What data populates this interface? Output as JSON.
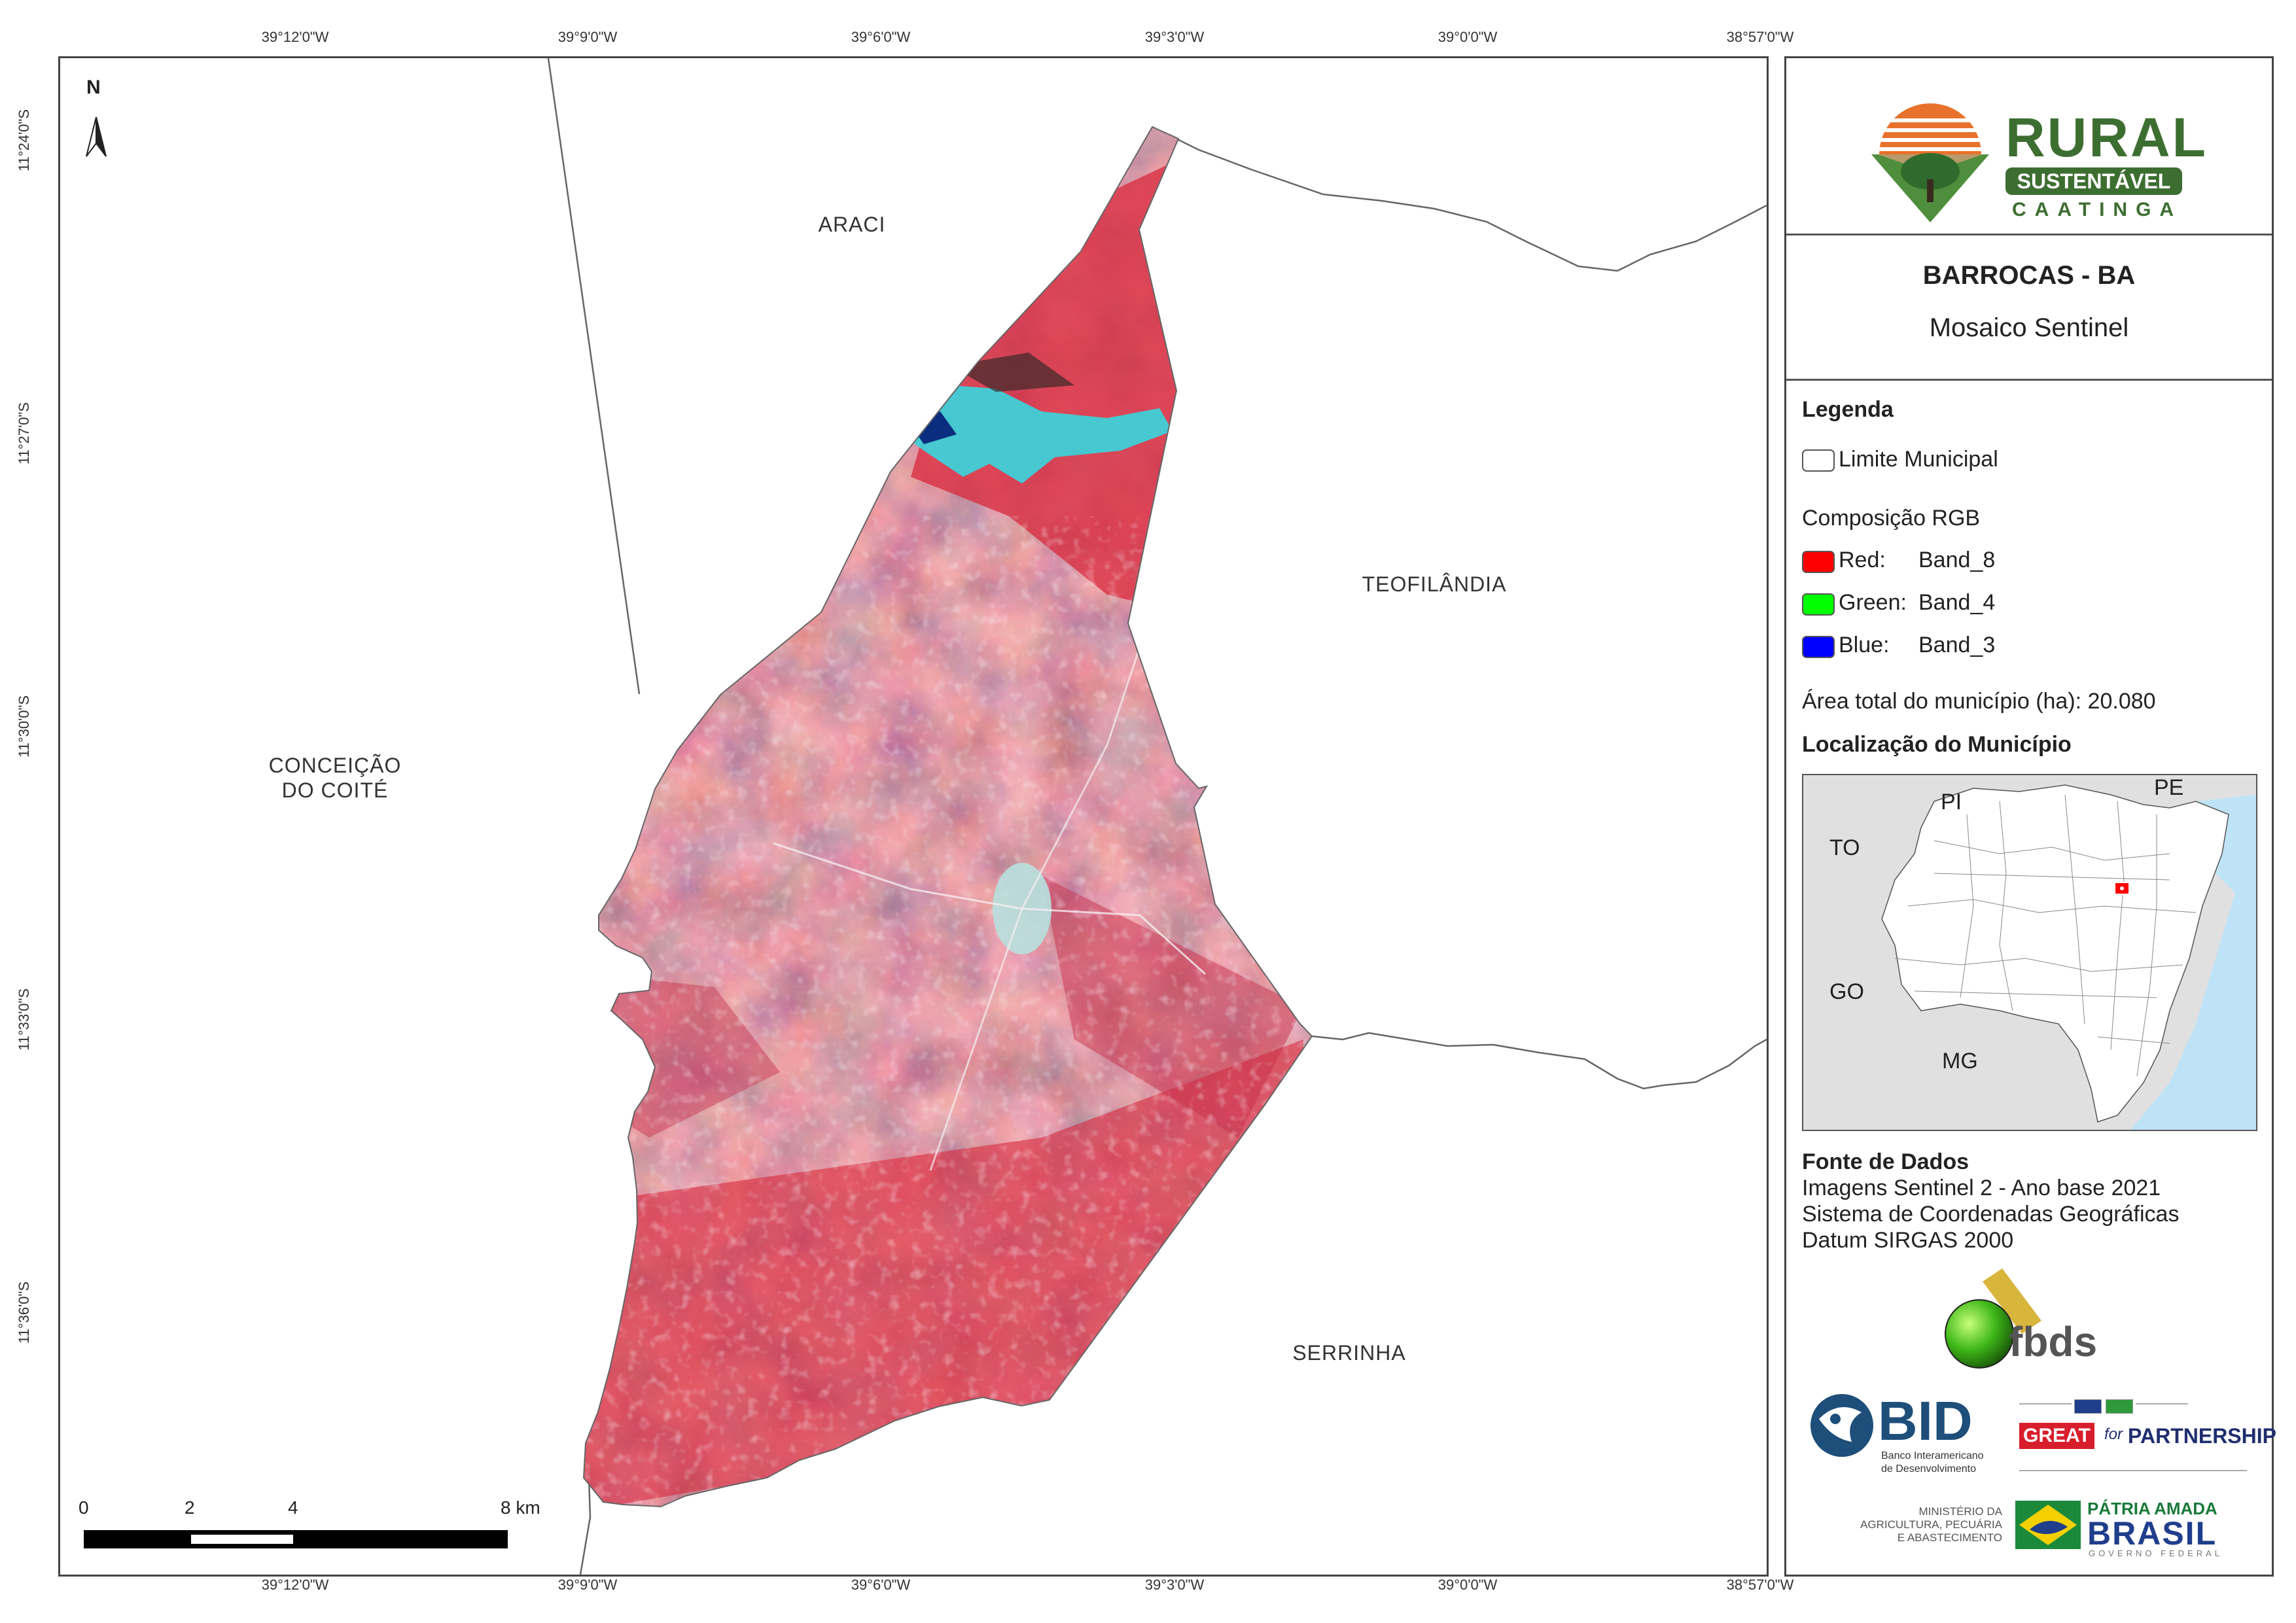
{
  "coordinates": {
    "longitudes": [
      "39°12'0\"W",
      "39°9'0\"W",
      "39°6'0\"W",
      "39°3'0\"W",
      "39°0'0\"W",
      "38°57'0\"W"
    ],
    "latitudes": [
      "11°24'0\"S",
      "11°27'0\"S",
      "11°30'0\"S",
      "11°33'0\"S",
      "11°36'0\"S"
    ]
  },
  "map": {
    "north_label": "N",
    "places": {
      "araci": "ARACI",
      "teofilandia": "TEOFILÂNDIA",
      "conceicao_line1": "CONCEIÇÃO",
      "conceicao_line2": "DO COITÉ",
      "serrinha": "SERRINHA"
    },
    "scalebar": {
      "labels": [
        "0",
        "2",
        "4",
        "8 km"
      ]
    },
    "colors": {
      "vegetation_red": "#d8283c",
      "bare_soil": "#9a8f88",
      "water_cyan": "#3fd0d8",
      "boundary": "#666666"
    }
  },
  "panel": {
    "logo": {
      "word_rural": "RURAL",
      "word_sustentavel": "SUSTENTÁVEL",
      "word_caatinga": "CAATINGA"
    },
    "title": "BARROCAS - BA",
    "subtitle": "Mosaico Sentinel",
    "legend": {
      "heading": "Legenda",
      "limite": "Limite Municipal",
      "composicao": "Composição RGB",
      "red_label": "Red:",
      "red_band": "Band_8",
      "green_label": "Green:",
      "green_band": "Band_4",
      "blue_label": "Blue:",
      "blue_band": "Band_3",
      "area": "Área total do município (ha): 20.080",
      "red_color": "#ff0000",
      "green_color": "#00ff00",
      "blue_color": "#0000ff"
    },
    "location": {
      "heading": "Localização do Município",
      "states": [
        "PI",
        "PE",
        "TO",
        "GO",
        "MG"
      ]
    },
    "fonte": {
      "heading": "Fonte de Dados",
      "line1": "Imagens Sentinel 2 - Ano base 2021",
      "line2": "Sistema de Coordenadas Geográficas",
      "line3": "Datum SIRGAS 2000"
    },
    "partners": {
      "fbds": "fbds",
      "bid": "BID",
      "bid_sub1": "Banco Interamericano",
      "bid_sub2": "de Desenvolvimento",
      "great": "GREAT",
      "for": "for",
      "partnership": "PARTNERSHIP",
      "ministerio1": "MINISTÉRIO DA",
      "ministerio2": "AGRICULTURA, PECUÁRIA",
      "ministerio3": "E ABASTECIMENTO",
      "patria": "PÁTRIA AMADA",
      "brasil": "BRASIL",
      "governo": "GOVERNO FEDERAL"
    }
  }
}
